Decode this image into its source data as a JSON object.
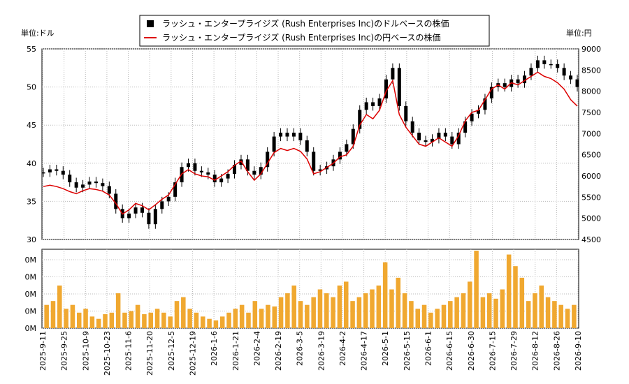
{
  "chart_data": {
    "type": "line",
    "legend": {
      "placement": "top-center",
      "entries": [
        {
          "label": "ラッシュ・エンタープライジズ (Rush Enterprises Inc)のドルベースの株価",
          "color": "#000000",
          "marker": "square"
        },
        {
          "label": "ラッシュ・エンタープライジズ (Rush Enterprises Inc)の円ベースの株価",
          "color": "#dd0000",
          "marker": "line"
        }
      ]
    },
    "left_unit_label": "単位:ドル",
    "right_unit_label": "単位:円",
    "left_axis": {
      "min": 30,
      "max": 55,
      "ticks": [
        "30",
        "35",
        "40",
        "45",
        "50",
        "55"
      ]
    },
    "right_axis": {
      "min": 4500,
      "max": 9000,
      "ticks": [
        "4500",
        "5000",
        "5500",
        "6000",
        "6500",
        "7000",
        "7500",
        "8000",
        "8500",
        "9000"
      ]
    },
    "volume_axis": {
      "ticks": [
        "0M",
        "0M",
        "0M",
        "0M",
        "0M"
      ]
    },
    "x_dates": [
      "2025-9-11",
      "2025-9-25",
      "2025-10-9",
      "2025-10-23",
      "2025-11-6",
      "2025-11-20",
      "2025-12-5",
      "2025-12-19",
      "2026-1-6",
      "2026-1-21",
      "2026-2-4",
      "2026-2-19",
      "2026-3-5",
      "2026-3-19",
      "2026-4-2",
      "2026-4-17",
      "2026-5-1",
      "2026-5-15",
      "2026-6-1",
      "2026-6-15",
      "2026-6-30",
      "2026-7-15",
      "2026-7-29",
      "2026-8-12",
      "2026-8-26",
      "2026-9-10"
    ],
    "grid": true,
    "usd_close": [
      38.8,
      39.2,
      39.0,
      38.5,
      37.5,
      36.8,
      37.2,
      37.6,
      37.4,
      37.0,
      36.0,
      34.0,
      32.8,
      33.4,
      34.2,
      33.5,
      32.0,
      34.0,
      35.0,
      35.6,
      37.5,
      39.5,
      40.0,
      39.0,
      38.8,
      38.5,
      37.5,
      38.0,
      38.6,
      39.8,
      40.5,
      39.0,
      38.5,
      39.5,
      41.5,
      43.5,
      44.0,
      43.5,
      44.0,
      43.0,
      41.5,
      39.0,
      39.2,
      39.6,
      40.5,
      41.5,
      42.5,
      44.5,
      47.0,
      48.0,
      47.5,
      48.5,
      51.0,
      52.5,
      47.5,
      45.5,
      44.0,
      43.0,
      42.8,
      43.2,
      44.0,
      43.5,
      42.5,
      44.0,
      45.5,
      46.5,
      47.0,
      48.5,
      50.0,
      50.5,
      50.0,
      51.0,
      50.5,
      51.5,
      52.5,
      53.5,
      53.0,
      53.0,
      52.5,
      51.5,
      51.0,
      50.0
    ],
    "jpy_close": [
      5750,
      5780,
      5750,
      5700,
      5630,
      5580,
      5650,
      5700,
      5680,
      5640,
      5550,
      5350,
      5100,
      5200,
      5350,
      5300,
      5200,
      5320,
      5450,
      5550,
      5800,
      6050,
      6150,
      6050,
      6000,
      5980,
      5900,
      6000,
      6100,
      6250,
      6350,
      6100,
      5900,
      6050,
      6300,
      6550,
      6650,
      6600,
      6650,
      6580,
      6400,
      6050,
      6100,
      6200,
      6300,
      6450,
      6500,
      6700,
      7200,
      7450,
      7350,
      7550,
      8000,
      8250,
      7450,
      7150,
      6950,
      6750,
      6700,
      6800,
      6900,
      6800,
      6700,
      6950,
      7300,
      7500,
      7550,
      7800,
      8050,
      8150,
      8050,
      8200,
      8150,
      8250,
      8350,
      8450,
      8350,
      8300,
      8200,
      8050,
      7800,
      7650
    ],
    "volume_rel": [
      0.3,
      0.35,
      0.55,
      0.25,
      0.3,
      0.2,
      0.25,
      0.15,
      0.12,
      0.18,
      0.2,
      0.45,
      0.2,
      0.22,
      0.3,
      0.18,
      0.2,
      0.25,
      0.2,
      0.15,
      0.35,
      0.4,
      0.25,
      0.2,
      0.15,
      0.12,
      0.1,
      0.15,
      0.2,
      0.25,
      0.3,
      0.2,
      0.35,
      0.25,
      0.3,
      0.28,
      0.4,
      0.45,
      0.55,
      0.35,
      0.3,
      0.4,
      0.5,
      0.45,
      0.4,
      0.55,
      0.6,
      0.35,
      0.4,
      0.45,
      0.5,
      0.55,
      0.85,
      0.5,
      0.65,
      0.45,
      0.35,
      0.25,
      0.3,
      0.2,
      0.25,
      0.3,
      0.35,
      0.4,
      0.45,
      0.6,
      1.0,
      0.4,
      0.45,
      0.38,
      0.5,
      0.95,
      0.8,
      0.65,
      0.35,
      0.45,
      0.55,
      0.4,
      0.35,
      0.3,
      0.25,
      0.3
    ]
  }
}
